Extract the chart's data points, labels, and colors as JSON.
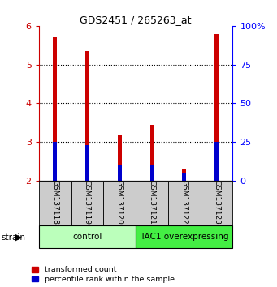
{
  "title": "GDS2451 / 265263_at",
  "samples": [
    "GSM137118",
    "GSM137119",
    "GSM137120",
    "GSM137121",
    "GSM137122",
    "GSM137123"
  ],
  "red_values": [
    5.7,
    5.35,
    3.2,
    3.45,
    2.3,
    5.78
  ],
  "blue_values": [
    3.0,
    2.92,
    2.42,
    2.42,
    2.18,
    3.0
  ],
  "ylim": [
    2.0,
    6.0
  ],
  "y2lim": [
    0,
    100
  ],
  "yticks": [
    2,
    3,
    4,
    5,
    6
  ],
  "y2ticks": [
    0,
    25,
    50,
    75,
    100
  ],
  "y2ticklabels": [
    "0",
    "25",
    "50",
    "75",
    "100%"
  ],
  "groups": [
    {
      "label": "control",
      "indices": [
        0,
        1,
        2
      ],
      "color": "#bbffbb"
    },
    {
      "label": "TAC1 overexpressing",
      "indices": [
        3,
        4,
        5
      ],
      "color": "#44ee44"
    }
  ],
  "red_bar_width": 0.12,
  "blue_bar_width": 0.12,
  "red_color": "#cc0000",
  "blue_color": "#0000cc",
  "bg_color": "#ffffff",
  "sample_bg": "#cccccc",
  "legend_red": "transformed count",
  "legend_blue": "percentile rank within the sample",
  "baseline": 2.0
}
